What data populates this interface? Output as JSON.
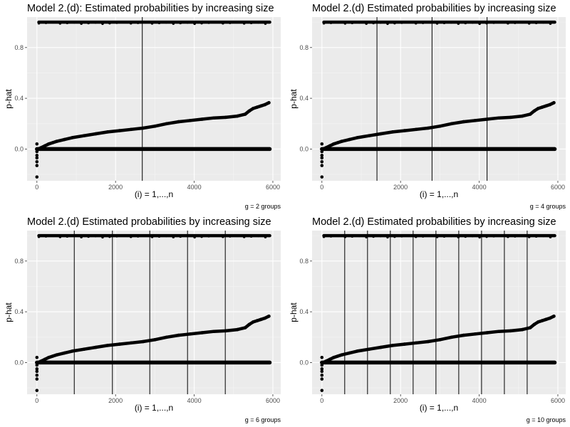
{
  "chart_data": [
    {
      "type": "scatter",
      "title": "Model 2.(d): Estimated probabilities by increasing size",
      "xlabel": "(i) = 1,...,n",
      "ylabel": "p-hat",
      "caption": "g = 2 groups",
      "xlim": [
        -250,
        6200
      ],
      "ylim": [
        -0.25,
        1.04
      ],
      "xticks": [
        0,
        2000,
        4000,
        6000
      ],
      "xtick_labels": [
        "0",
        "2000",
        "4000",
        "6000"
      ],
      "yticks": [
        0.0,
        0.4,
        0.8
      ],
      "ytick_labels": [
        "0.0",
        "0.4",
        "0.8"
      ],
      "grid": true,
      "vlines": [
        2680
      ],
      "series": [
        {
          "values_x": [
            30,
            100,
            200,
            300,
            400,
            500,
            700,
            900,
            1200,
            1500,
            1800,
            2100,
            2400,
            2700,
            3000,
            3300,
            3600,
            3900,
            4200,
            4500,
            4800,
            5100,
            5300,
            5400,
            5500,
            5600,
            5700,
            5800,
            5900
          ],
          "values_y": [
            0.0,
            0.01,
            0.025,
            0.04,
            0.05,
            0.06,
            0.075,
            0.09,
            0.105,
            0.12,
            0.135,
            0.145,
            0.155,
            0.165,
            0.18,
            0.2,
            0.215,
            0.225,
            0.235,
            0.245,
            0.25,
            0.26,
            0.275,
            0.3,
            0.32,
            0.33,
            0.34,
            0.35,
            0.365
          ]
        },
        {
          "values_x": [
            0,
            0,
            0,
            0,
            0,
            0,
            0
          ],
          "values_y": [
            0.04,
            -0.02,
            -0.05,
            -0.07,
            -0.1,
            -0.13,
            -0.22
          ]
        },
        {
          "band": "zero",
          "x_range": [
            0,
            5920
          ],
          "y": 0.0
        },
        {
          "band": "one",
          "x_range": [
            50,
            5920
          ],
          "y": 1.0
        }
      ]
    },
    {
      "type": "scatter",
      "title": "Model 2.(d) Estimated probabilities by increasing size",
      "xlabel": "(i) = 1,...,n",
      "ylabel": "p-hat",
      "caption": "g = 4 groups",
      "xlim": [
        -250,
        6200
      ],
      "ylim": [
        -0.25,
        1.04
      ],
      "xticks": [
        0,
        2000,
        4000,
        6000
      ],
      "xtick_labels": [
        "0",
        "2000",
        "4000",
        "6000"
      ],
      "yticks": [
        0.0,
        0.4,
        0.8
      ],
      "ytick_labels": [
        "0.0",
        "0.4",
        "0.8"
      ],
      "grid": true,
      "vlines": [
        1400,
        2800,
        4200
      ],
      "series": [
        {
          "values_x": [
            30,
            100,
            200,
            300,
            400,
            500,
            700,
            900,
            1200,
            1500,
            1800,
            2100,
            2400,
            2700,
            3000,
            3300,
            3600,
            3900,
            4200,
            4500,
            4800,
            5100,
            5300,
            5400,
            5500,
            5600,
            5700,
            5800,
            5900
          ],
          "values_y": [
            0.0,
            0.01,
            0.025,
            0.04,
            0.05,
            0.06,
            0.075,
            0.09,
            0.105,
            0.12,
            0.135,
            0.145,
            0.155,
            0.165,
            0.18,
            0.2,
            0.215,
            0.225,
            0.235,
            0.245,
            0.25,
            0.26,
            0.275,
            0.3,
            0.32,
            0.33,
            0.34,
            0.35,
            0.365
          ]
        },
        {
          "values_x": [
            0,
            0,
            0,
            0,
            0,
            0,
            0
          ],
          "values_y": [
            0.04,
            -0.02,
            -0.05,
            -0.07,
            -0.1,
            -0.13,
            -0.22
          ]
        },
        {
          "band": "zero",
          "x_range": [
            0,
            5920
          ],
          "y": 0.0
        },
        {
          "band": "one",
          "x_range": [
            50,
            5920
          ],
          "y": 1.0
        }
      ]
    },
    {
      "type": "scatter",
      "title": "Model 2.(d) Estimated probabilities by increasing size",
      "xlabel": "(i) = 1,...,n",
      "ylabel": "p-hat",
      "caption": "g = 6 groups",
      "xlim": [
        -250,
        6200
      ],
      "ylim": [
        -0.25,
        1.04
      ],
      "xticks": [
        0,
        2000,
        4000,
        6000
      ],
      "xtick_labels": [
        "0",
        "2000",
        "4000",
        "6000"
      ],
      "yticks": [
        0.0,
        0.4,
        0.8
      ],
      "ytick_labels": [
        "0.0",
        "0.4",
        "0.8"
      ],
      "grid": true,
      "vlines": [
        950,
        1920,
        2870,
        3830,
        4790
      ],
      "series": [
        {
          "values_x": [
            30,
            100,
            200,
            300,
            400,
            500,
            700,
            900,
            1200,
            1500,
            1800,
            2100,
            2400,
            2700,
            3000,
            3300,
            3600,
            3900,
            4200,
            4500,
            4800,
            5100,
            5300,
            5400,
            5500,
            5600,
            5700,
            5800,
            5900
          ],
          "values_y": [
            0.0,
            0.01,
            0.025,
            0.04,
            0.05,
            0.06,
            0.075,
            0.09,
            0.105,
            0.12,
            0.135,
            0.145,
            0.155,
            0.165,
            0.18,
            0.2,
            0.215,
            0.225,
            0.235,
            0.245,
            0.25,
            0.26,
            0.275,
            0.3,
            0.32,
            0.33,
            0.34,
            0.35,
            0.365
          ]
        },
        {
          "values_x": [
            0,
            0,
            0,
            0,
            0,
            0,
            0
          ],
          "values_y": [
            0.04,
            -0.02,
            -0.05,
            -0.07,
            -0.1,
            -0.13,
            -0.22
          ]
        },
        {
          "band": "zero",
          "x_range": [
            0,
            5920
          ],
          "y": 0.0
        },
        {
          "band": "one",
          "x_range": [
            50,
            5920
          ],
          "y": 1.0
        }
      ]
    },
    {
      "type": "scatter",
      "title": "Model 2.(d) Estimated probabilities by increasing size",
      "xlabel": "(i) = 1,...,n",
      "ylabel": "p-hat",
      "caption": "g = 10 groups",
      "xlim": [
        -250,
        6200
      ],
      "ylim": [
        -0.25,
        1.04
      ],
      "xticks": [
        0,
        2000,
        4000,
        6000
      ],
      "xtick_labels": [
        "0",
        "2000",
        "4000",
        "6000"
      ],
      "yticks": [
        0.0,
        0.4,
        0.8
      ],
      "ytick_labels": [
        "0.0",
        "0.4",
        "0.8"
      ],
      "grid": true,
      "vlines": [
        580,
        1160,
        1740,
        2320,
        2900,
        3480,
        4060,
        4640,
        5220
      ],
      "series": [
        {
          "values_x": [
            30,
            100,
            200,
            300,
            400,
            500,
            700,
            900,
            1200,
            1500,
            1800,
            2100,
            2400,
            2700,
            3000,
            3300,
            3600,
            3900,
            4200,
            4500,
            4800,
            5100,
            5300,
            5400,
            5500,
            5600,
            5700,
            5800,
            5900
          ],
          "values_y": [
            0.0,
            0.01,
            0.025,
            0.04,
            0.05,
            0.06,
            0.075,
            0.09,
            0.105,
            0.12,
            0.135,
            0.145,
            0.155,
            0.165,
            0.18,
            0.2,
            0.215,
            0.225,
            0.235,
            0.245,
            0.25,
            0.26,
            0.275,
            0.3,
            0.32,
            0.33,
            0.34,
            0.35,
            0.365
          ]
        },
        {
          "values_x": [
            0,
            0,
            0,
            0,
            0,
            0,
            0
          ],
          "values_y": [
            0.04,
            -0.02,
            -0.05,
            -0.07,
            -0.1,
            -0.13,
            -0.22
          ]
        },
        {
          "band": "zero",
          "x_range": [
            0,
            5920
          ],
          "y": 0.0
        },
        {
          "band": "one",
          "x_range": [
            50,
            5920
          ],
          "y": 1.0
        }
      ]
    }
  ],
  "colors": {
    "panel_bg": "#ebebeb",
    "grid_major": "#ffffff",
    "grid_minor": "#f5f5f5",
    "points": "#000000",
    "vline": "#000000",
    "tick_text": "#4d4d4d"
  }
}
